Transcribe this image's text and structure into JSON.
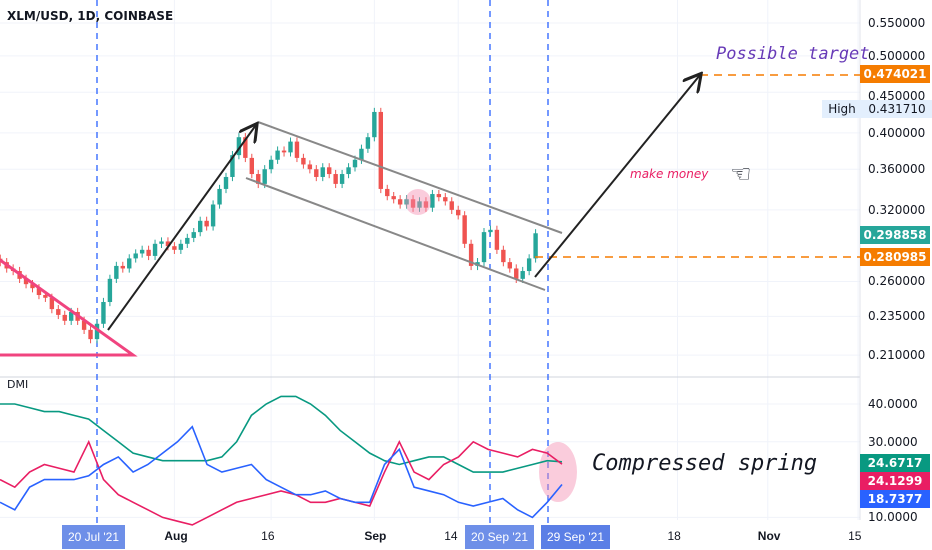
{
  "header": {
    "title": "XLM/USD, 1D, COINBASE"
  },
  "annotations": {
    "target": "Possible target",
    "money": "make money",
    "spring": "Compressed spring",
    "dmi": "DMI",
    "high_label": "High"
  },
  "price_tags": {
    "target": "0.474021",
    "high": "0.431710",
    "last": "0.298858",
    "entry": "0.280985"
  },
  "dmi_tags": {
    "adx": "24.6717",
    "minus": "24.1299",
    "plus": "18.7377"
  },
  "colors": {
    "up": "#26a69a",
    "down": "#ef5350",
    "orange": "#f57c00",
    "adx": "#089981",
    "minus": "#e91e63",
    "plus": "#2962ff",
    "purple": "#673ab7"
  },
  "chart_data": {
    "type": "candlestick",
    "title": "XLM/USD, 1D, COINBASE",
    "price_axis": {
      "ticks": [
        "0.550000",
        "0.500000",
        "0.450000",
        "0.400000",
        "0.360000",
        "0.320000",
        "0.260000",
        "0.235000",
        "0.210000"
      ],
      "tick_values": [
        0.55,
        0.5,
        0.45,
        0.4,
        0.36,
        0.32,
        0.26,
        0.235,
        0.21
      ],
      "scale": "log"
    },
    "dmi_axis": {
      "ticks": [
        "40.0000",
        "30.0000",
        "10.0000"
      ],
      "tick_values": [
        40,
        30,
        10
      ]
    },
    "x_axis": {
      "ticks": [
        "Aug",
        "16",
        "Sep",
        "14",
        "18",
        "Nov",
        "15"
      ],
      "tick_day_offsets": [
        12,
        27,
        43,
        56,
        90,
        104,
        118
      ],
      "highlighted": [
        "20 Jul '21",
        "20 Sep '21",
        "29 Sep '21"
      ]
    },
    "start_date": "2021-07-05",
    "closes": [
      0.275,
      0.27,
      0.268,
      0.262,
      0.258,
      0.255,
      0.25,
      0.248,
      0.24,
      0.236,
      0.232,
      0.238,
      0.232,
      0.226,
      0.22,
      0.23,
      0.245,
      0.262,
      0.272,
      0.27,
      0.278,
      0.282,
      0.285,
      0.28,
      0.29,
      0.292,
      0.288,
      0.285,
      0.29,
      0.295,
      0.3,
      0.31,
      0.305,
      0.325,
      0.34,
      0.352,
      0.375,
      0.395,
      0.372,
      0.355,
      0.345,
      0.36,
      0.37,
      0.38,
      0.378,
      0.39,
      0.372,
      0.365,
      0.36,
      0.352,
      0.362,
      0.355,
      0.345,
      0.355,
      0.362,
      0.37,
      0.382,
      0.395,
      0.425,
      0.34,
      0.333,
      0.33,
      0.325,
      0.33,
      0.322,
      0.328,
      0.322,
      0.335,
      0.332,
      0.328,
      0.32,
      0.315,
      0.29,
      0.272,
      0.275,
      0.3,
      0.302,
      0.285,
      0.275,
      0.27,
      0.262,
      0.268,
      0.278,
      0.299
    ],
    "dmi": {
      "adx": [
        40,
        40,
        39,
        38,
        38,
        37,
        36,
        33,
        30,
        27,
        26,
        25,
        25,
        25,
        25,
        26,
        30,
        37,
        40,
        42,
        42,
        40,
        37,
        33,
        30,
        27,
        25,
        24,
        25,
        26,
        26,
        24,
        22,
        22,
        22,
        23,
        24,
        25,
        24.7
      ],
      "minus_di": [
        20,
        18,
        22,
        24,
        23,
        22,
        30,
        20,
        16,
        14,
        12,
        10,
        9,
        8,
        10,
        12,
        14,
        15,
        16,
        17,
        16,
        14,
        14,
        15,
        14,
        13,
        22,
        30,
        22,
        20,
        24,
        26,
        30,
        28,
        27,
        26,
        28,
        27,
        24.1
      ],
      "plus_di": [
        14,
        12,
        18,
        20,
        20,
        20,
        21,
        24,
        26,
        22,
        24,
        27,
        30,
        34,
        24,
        22,
        23,
        24,
        20,
        18,
        16,
        16,
        17,
        15,
        14,
        14,
        24,
        28,
        18,
        17,
        16,
        14,
        13,
        14,
        15,
        12,
        10,
        14,
        18.7
      ]
    }
  }
}
